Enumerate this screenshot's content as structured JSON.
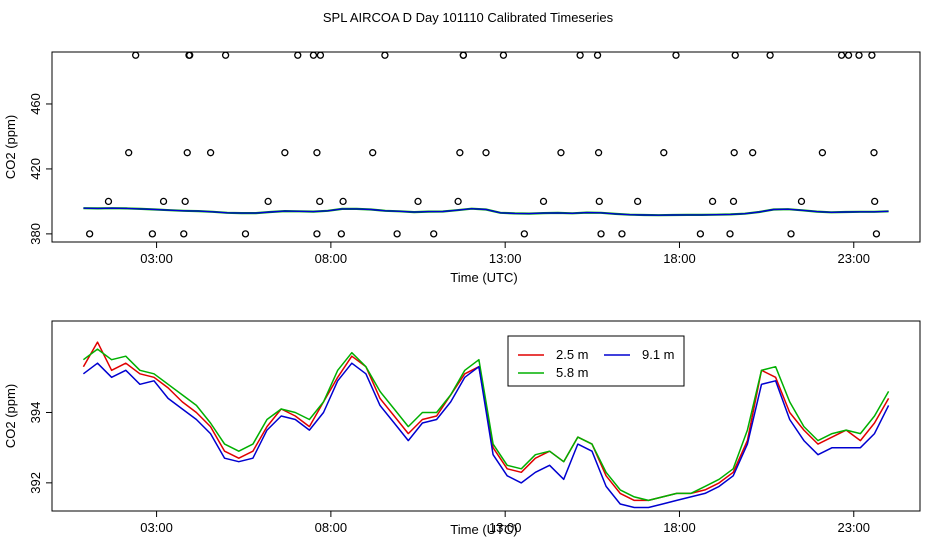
{
  "title": "SPL AIRCOA D  Day 101110  Calibrated Timeseries",
  "colors": {
    "series_1": "#e00000",
    "series_2": "#00b000",
    "series_3": "#0000d0",
    "points": "#000000"
  },
  "chart_data": [
    {
      "type": "scatter",
      "xlabel": "Time (UTC)",
      "ylabel": "CO2 (ppm)",
      "xlim": [
        0.0,
        24.9
      ],
      "ylim": [
        375,
        492
      ],
      "x_ticks": [
        {
          "value": 3,
          "label": "03:00"
        },
        {
          "value": 8,
          "label": "08:00"
        },
        {
          "value": 13,
          "label": "13:00"
        },
        {
          "value": 18,
          "label": "18:00"
        },
        {
          "value": 23,
          "label": "23:00"
        }
      ],
      "y_ticks": [
        {
          "value": 380,
          "label": "380"
        },
        {
          "value": 420,
          "label": "420"
        },
        {
          "value": 460,
          "label": "460"
        }
      ],
      "grid": false,
      "points_x": [
        1.08,
        1.62,
        2.2,
        2.4,
        2.88,
        3.2,
        3.78,
        3.82,
        3.88,
        3.93,
        3.95,
        4.55,
        4.98,
        5.55,
        6.2,
        6.68,
        7.05,
        7.5,
        7.6,
        7.6,
        7.68,
        7.7,
        8.3,
        8.35,
        9.2,
        9.55,
        9.9,
        10.5,
        10.95,
        11.65,
        11.7,
        11.8,
        11.8,
        12.45,
        12.95,
        13.55,
        14.1,
        14.6,
        15.15,
        15.65,
        15.68,
        15.7,
        15.75,
        16.35,
        16.8,
        17.55,
        17.9,
        18.6,
        18.95,
        19.45,
        19.55,
        19.57,
        19.6,
        20.1,
        20.6,
        21.2,
        21.5,
        22.1,
        22.65,
        22.85,
        23.15,
        23.52,
        23.58,
        23.6,
        23.65
      ],
      "points_y": [
        380,
        400,
        430,
        490,
        380,
        400,
        380,
        400,
        430,
        490,
        490,
        430,
        490,
        380,
        400,
        430,
        490,
        490,
        430,
        380,
        400,
        490,
        380,
        400,
        430,
        490,
        380,
        400,
        380,
        400,
        430,
        490,
        490,
        430,
        490,
        380,
        400,
        430,
        490,
        490,
        430,
        400,
        380,
        380,
        400,
        430,
        490,
        380,
        400,
        380,
        400,
        430,
        490,
        430,
        490,
        380,
        400,
        430,
        490,
        490,
        490,
        490,
        430,
        400,
        380
      ],
      "line_values": [
        395.8,
        395.7,
        395.8,
        395.7,
        395.4,
        395.0,
        394.6,
        394.2,
        394.0,
        393.6,
        393.0,
        392.8,
        392.8,
        393.5,
        394.0,
        393.9,
        393.7,
        394.2,
        395.4,
        395.4,
        395.0,
        394.2,
        393.9,
        393.4,
        393.7,
        393.8,
        394.6,
        395.5,
        395.0,
        393.0,
        392.6,
        392.5,
        392.8,
        392.9,
        392.7,
        393.1,
        393.0,
        392.3,
        391.8,
        391.6,
        391.5,
        391.6,
        391.7,
        391.7,
        391.8,
        392.0,
        392.4,
        393.5,
        395.0,
        395.2,
        394.5,
        393.7,
        393.3,
        393.5,
        393.6,
        393.6,
        393.9
      ],
      "line_start": 0.9,
      "line_end": 24.0,
      "line_color": "#0000d0"
    },
    {
      "type": "line",
      "xlabel": "Time (UTC)",
      "ylabel": "CO2 (ppm)",
      "xlim": [
        0.0,
        24.9
      ],
      "ylim": [
        391.2,
        396.6
      ],
      "x_ticks": [
        {
          "value": 3,
          "label": "03:00"
        },
        {
          "value": 8,
          "label": "08:00"
        },
        {
          "value": 13,
          "label": "13:00"
        },
        {
          "value": 18,
          "label": "18:00"
        },
        {
          "value": 23,
          "label": "23:00"
        }
      ],
      "y_ticks": [
        {
          "value": 392,
          "label": "392"
        },
        {
          "value": 394,
          "label": "394"
        }
      ],
      "grid": false,
      "legend_position": "top-right",
      "x_start": 0.9,
      "x_end": 24.0,
      "series": [
        {
          "name": "2.5 m",
          "color": "#e00000",
          "values": [
            395.3,
            396.0,
            395.2,
            395.4,
            395.1,
            395.0,
            394.7,
            394.3,
            394.0,
            393.6,
            392.9,
            392.7,
            392.9,
            393.6,
            394.1,
            393.9,
            393.6,
            394.3,
            395.0,
            395.6,
            395.3,
            394.4,
            393.9,
            393.4,
            393.8,
            393.9,
            394.5,
            395.1,
            395.3,
            393.0,
            392.4,
            392.3,
            392.7,
            392.9,
            392.6,
            393.3,
            393.1,
            392.2,
            391.7,
            391.5,
            391.5,
            391.6,
            391.7,
            391.7,
            391.8,
            392.0,
            392.3,
            393.2,
            395.2,
            395.0,
            394.0,
            393.5,
            393.1,
            393.3,
            393.5,
            393.2,
            393.7,
            394.4
          ]
        },
        {
          "name": "5.8 m",
          "color": "#00b000",
          "values": [
            395.5,
            395.8,
            395.5,
            395.6,
            395.2,
            395.1,
            394.8,
            394.5,
            394.2,
            393.7,
            393.1,
            392.9,
            393.1,
            393.8,
            394.1,
            394.0,
            393.8,
            394.3,
            395.2,
            395.7,
            395.3,
            394.6,
            394.1,
            393.6,
            394.0,
            394.0,
            394.5,
            395.2,
            395.5,
            393.1,
            392.5,
            392.4,
            392.8,
            392.9,
            392.6,
            393.3,
            393.1,
            392.3,
            391.8,
            391.6,
            391.5,
            391.6,
            391.7,
            391.7,
            391.9,
            392.1,
            392.4,
            393.5,
            395.2,
            395.3,
            394.3,
            393.6,
            393.2,
            393.4,
            393.5,
            393.4,
            393.9,
            394.6
          ]
        },
        {
          "name": "9.1 m",
          "color": "#0000d0",
          "values": [
            395.1,
            395.4,
            395.0,
            395.2,
            394.8,
            394.9,
            394.4,
            394.1,
            393.8,
            393.4,
            392.7,
            392.6,
            392.7,
            393.5,
            393.9,
            393.8,
            393.5,
            394.0,
            394.9,
            395.4,
            395.1,
            394.2,
            393.7,
            393.2,
            393.7,
            393.8,
            394.3,
            395.0,
            395.3,
            392.8,
            392.2,
            392.0,
            392.3,
            392.5,
            392.1,
            393.1,
            392.9,
            391.9,
            391.4,
            391.3,
            391.3,
            391.4,
            391.5,
            391.6,
            391.7,
            391.9,
            392.2,
            393.1,
            394.8,
            394.9,
            393.8,
            393.2,
            392.8,
            393.0,
            393.0,
            393.0,
            393.4,
            394.2
          ]
        }
      ]
    }
  ]
}
